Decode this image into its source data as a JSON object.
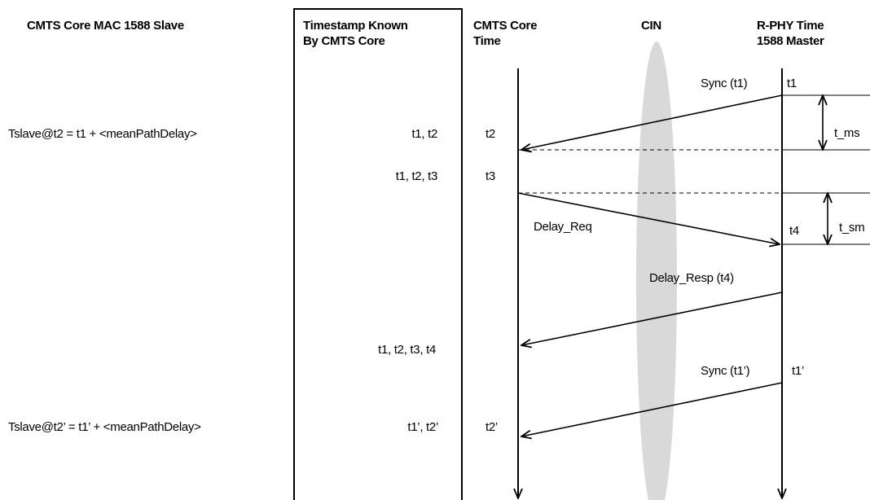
{
  "headers": {
    "col1": "CMTS Core MAC 1588 Slave",
    "col2_line1": "Timestamp Known",
    "col2_line2": "By CMTS Core",
    "col3_line1": "CMTS Core",
    "col3_line2": "Time",
    "col4": "CIN",
    "col5_line1": "R-PHY Time",
    "col5_line2": "1588 Master"
  },
  "equations": {
    "first": "Tslave@t2 = t1 + <meanPathDelay>",
    "second": "Tslave@t2’ = t1’ + <meanPathDelay>"
  },
  "timestamps_known": {
    "row1": "t1, t2",
    "row2": "t1, t2, t3",
    "row3": "t1, t2, t3, t4",
    "row4": "t1’, t2’"
  },
  "core_times": {
    "t2": "t2",
    "t3": "t3",
    "t2_prime": "t2’"
  },
  "master_times": {
    "t1": "t1",
    "t4": "t4",
    "t1_prime": "t1’"
  },
  "messages": {
    "sync1": "Sync (t1)",
    "delay_req": "Delay_Req",
    "delay_resp": "Delay_Resp (t4)",
    "sync2": "Sync (t1’)"
  },
  "intervals": {
    "t_ms": "t_ms",
    "t_sm": "t_sm"
  },
  "colors": {
    "line": "#000000",
    "cin_ellipse": "#d9d9d9",
    "background": "#ffffff"
  }
}
